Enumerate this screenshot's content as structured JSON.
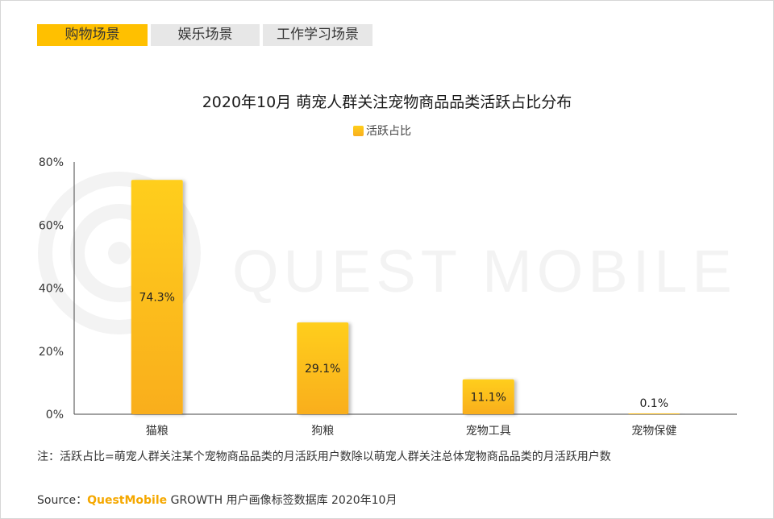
{
  "tabs": [
    {
      "label": "购物场景",
      "active": true
    },
    {
      "label": "娱乐场景",
      "active": false
    },
    {
      "label": "工作学习场景",
      "active": false
    }
  ],
  "watermark_text": "QUEST MOBILE",
  "colors": {
    "bar_top": "#ffce1a",
    "bar_bottom": "#f9ae1f",
    "active_tab": "#ffc000",
    "brand": "#f5a800"
  },
  "chart_data": {
    "type": "bar",
    "title": "2020年10月 萌宠人群关注宠物商品品类活跃占比分布",
    "legend_position": "top-center",
    "categories": [
      "猫粮",
      "狗粮",
      "宠物工具",
      "宠物保健"
    ],
    "series": [
      {
        "name": "活跃占比",
        "values": [
          74.3,
          29.1,
          11.1,
          0.1
        ],
        "labels": [
          "74.3%",
          "29.1%",
          "11.1%",
          "0.1%"
        ]
      }
    ],
    "ylim": [
      0,
      80
    ],
    "yticks": [
      "0%",
      "20%",
      "40%",
      "60%",
      "80%"
    ],
    "grid": false,
    "xlabel": "",
    "ylabel": ""
  },
  "note": "注：活跃占比=萌宠人群关注某个宠物商品品类的月活跃用户数除以萌宠人群关注总体宠物商品品类的月活跃用户数",
  "source": {
    "prefix": "Source：",
    "brand": "QuestMobile",
    "suffix": " GROWTH 用户画像标签数据库 2020年10月"
  }
}
